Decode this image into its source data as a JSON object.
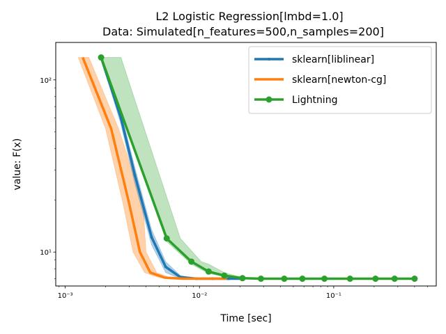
{
  "chart_data": {
    "type": "line",
    "title": "L2 Logistic Regression[lmbd=1.0]",
    "subtitle": "Data: Simulated[n_features=500,n_samples=200]",
    "xlabel": "Time [sec]",
    "ylabel": "value: F(x)",
    "xscale": "log",
    "yscale": "log",
    "xlim": [
      0.00085,
      0.58
    ],
    "ylim": [
      6.35,
      165
    ],
    "xticks": [
      {
        "value": 0.001,
        "label": "10⁻³"
      },
      {
        "value": 0.01,
        "label": "10⁻²"
      },
      {
        "value": 0.1,
        "label": "10⁻¹"
      }
    ],
    "yticks": [
      {
        "value": 10,
        "label": "10¹"
      },
      {
        "value": 100,
        "label": "10²"
      }
    ],
    "grid": false,
    "legend_position": "top-right",
    "series": [
      {
        "name": "sklearn[liblinear]",
        "color": "#1f77b4",
        "marker": "dot",
        "x": [
          0.00185,
          0.0026,
          0.0033,
          0.0044,
          0.0056,
          0.0072,
          0.0095,
          0.0125,
          0.0165,
          0.021
        ],
        "y": [
          135,
          60,
          28,
          12.2,
          8.2,
          7.15,
          7.0,
          7.0,
          7.0,
          7.0
        ],
        "band_low": [
          135,
          55,
          25,
          11.0,
          7.6,
          7.0,
          7.0,
          7.0,
          7.0,
          7.0
        ],
        "band_high": [
          135,
          65,
          31,
          13.5,
          8.8,
          7.3,
          7.05,
          7.0,
          7.0,
          7.0
        ]
      },
      {
        "name": "sklearn[newton-cg]",
        "color": "#ff7f0e",
        "marker": "none",
        "x": [
          0.00135,
          0.0022,
          0.003,
          0.0036,
          0.0043,
          0.0055,
          0.0075,
          0.011,
          0.016
        ],
        "y": [
          135,
          52,
          19,
          10,
          7.6,
          7.1,
          7.0,
          7.0,
          7.0
        ],
        "band_low_x": [
          0.00125,
          0.002,
          0.0027,
          0.0032,
          0.0039,
          0.005,
          0.007,
          0.011,
          0.016
        ],
        "band_high_x": [
          0.0015,
          0.0025,
          0.0038,
          0.004,
          0.0048,
          0.006,
          0.008,
          0.011,
          0.016
        ]
      },
      {
        "name": "Lightning",
        "color": "#2ca02c",
        "marker": "circle",
        "x": [
          0.00185,
          0.0057,
          0.0087,
          0.0117,
          0.0153,
          0.0209,
          0.0287,
          0.0428,
          0.0584,
          0.0852,
          0.1322,
          0.2046,
          0.2839,
          0.4
        ],
        "y": [
          135,
          12,
          8.8,
          7.7,
          7.3,
          7.05,
          7.0,
          7.0,
          7.0,
          7.0,
          7.0,
          7.0,
          7.0,
          7.0
        ],
        "band_low": [
          135,
          11.5,
          8.5,
          7.5,
          7.2,
          7.0,
          7.0,
          7.0,
          7.0,
          7.0,
          7.0,
          7.0,
          7.0,
          7.0
        ],
        "band_high": [
          135,
          20,
          11,
          8.5,
          7.6,
          7.1,
          7.0,
          7.0,
          7.0,
          7.0,
          7.0,
          7.0,
          7.0,
          7.0
        ],
        "band_high_extra": [
          {
            "x": 0.0026,
            "y": 135
          },
          {
            "x": 0.0072,
            "y": 12
          },
          {
            "x": 0.0103,
            "y": 8.8
          }
        ]
      }
    ]
  }
}
